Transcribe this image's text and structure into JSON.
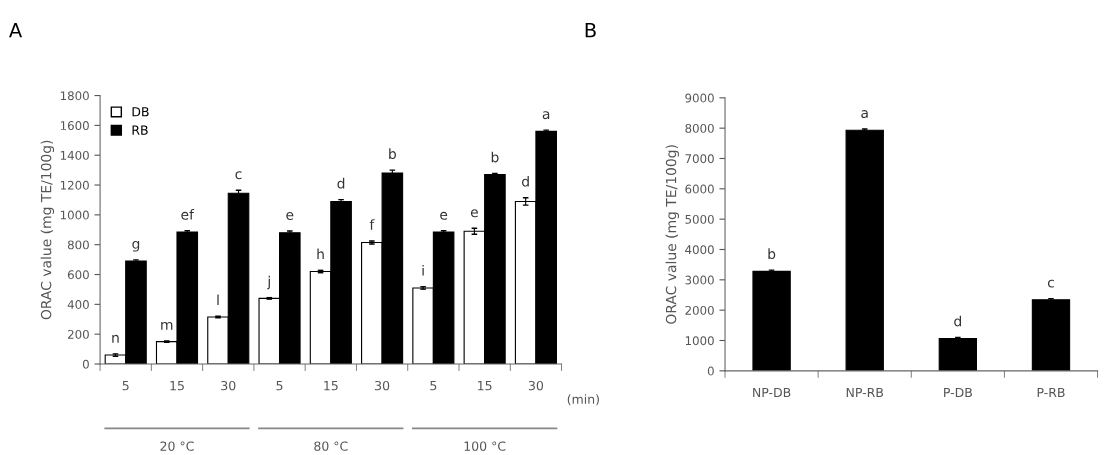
{
  "chart_data": [
    {
      "type": "bar",
      "title": "A",
      "ylabel": "ORAC value (mg TE/100g)",
      "xlabel": "(min)",
      "categories": [
        "5",
        "15",
        "30",
        "5",
        "15",
        "30",
        "5",
        "15",
        "30"
      ],
      "series": [
        {
          "name": "DB",
          "color": "#ffffff",
          "values": [
            60,
            150,
            315,
            440,
            620,
            815,
            510,
            890,
            1090
          ],
          "errors": [
            8,
            5,
            5,
            5,
            8,
            10,
            8,
            20,
            25
          ],
          "value_labels": [
            "n",
            "m",
            "l",
            "j",
            "h",
            "f",
            "i",
            "e",
            "d"
          ]
        },
        {
          "name": "RB",
          "color": "#000000",
          "values": [
            690,
            885,
            1145,
            880,
            1090,
            1280,
            885,
            1270,
            1560
          ],
          "errors": [
            8,
            8,
            20,
            12,
            12,
            20,
            8,
            8,
            8
          ],
          "value_labels": [
            "g",
            "ef",
            "c",
            "e",
            "d",
            "b",
            "e",
            "b",
            "a"
          ]
        }
      ],
      "ylim": [
        0,
        1800
      ],
      "yticks": [
        0,
        200,
        400,
        600,
        800,
        1000,
        1200,
        1400,
        1600,
        1800
      ],
      "annotations": [
        "20 °C",
        "80 °C",
        "100 °C"
      ],
      "legend": "top left",
      "grid": false
    },
    {
      "type": "bar",
      "title": "B",
      "ylabel": "ORAC value (mg TE/100g)",
      "categories": [
        "NP-DB",
        "NP-RB",
        "P-DB",
        "P-RB"
      ],
      "series": [
        {
          "color": "#000000",
          "values": [
            3280,
            7930,
            1060,
            2340
          ],
          "errors": [
            40,
            40,
            40,
            40
          ],
          "value_labels": [
            "b",
            "a",
            "d",
            "c"
          ]
        }
      ],
      "ylim": [
        0,
        9000
      ],
      "yticks": [
        0,
        1000,
        2000,
        3000,
        4000,
        5000,
        6000,
        7000,
        8000,
        9000
      ],
      "legend": false,
      "grid": false
    }
  ]
}
